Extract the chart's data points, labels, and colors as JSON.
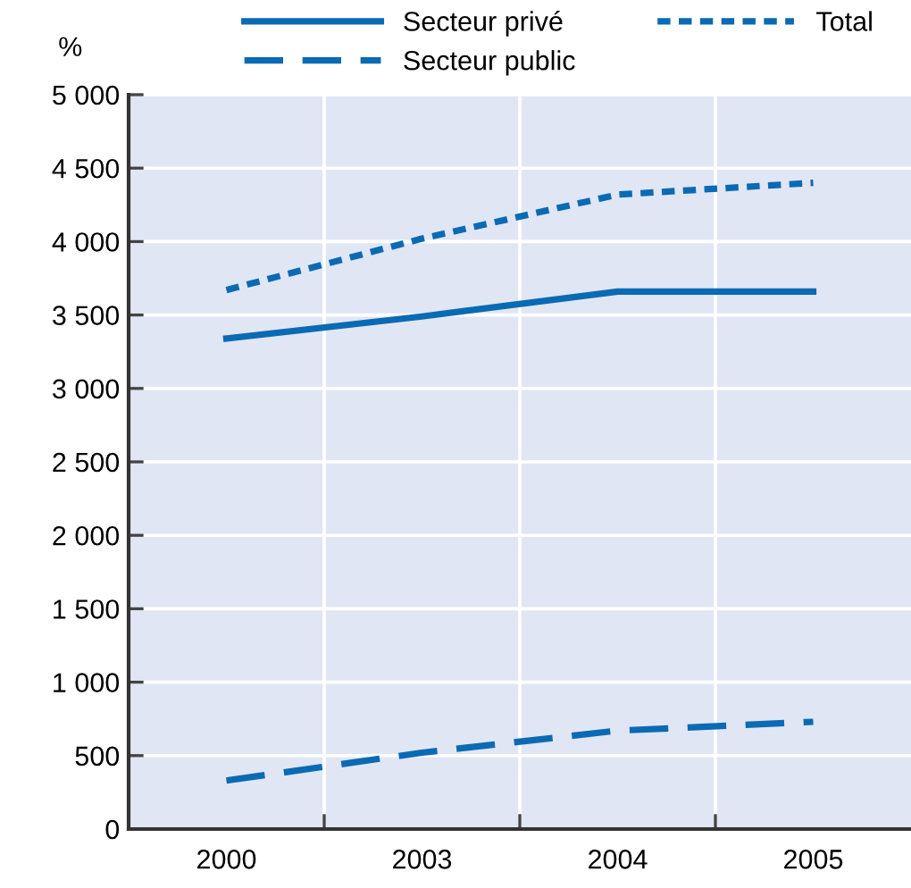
{
  "chart_data": {
    "type": "line",
    "ylabel": "%",
    "categories": [
      "2000",
      "2003",
      "2004",
      "2005"
    ],
    "series": [
      {
        "name": "Secteur privé",
        "color": "#0a6ab4",
        "line_style": "solid",
        "values": [
          3340,
          3490,
          3660,
          3660
        ]
      },
      {
        "name": "Secteur public",
        "color": "#0a6ab4",
        "line_style": "dashed",
        "values": [
          330,
          520,
          670,
          730
        ]
      },
      {
        "name": "Total",
        "color": "#0a6ab4",
        "line_style": "dotted",
        "values": [
          3670,
          4020,
          4320,
          4400
        ]
      }
    ],
    "ylim": [
      0,
      5000
    ],
    "yticks": [
      0,
      500,
      {
        "value": 1000,
        "label": "1 000"
      },
      {
        "value": 1500,
        "label": "1 500"
      },
      {
        "value": 2000,
        "label": "2 000"
      },
      {
        "value": 2500,
        "label": "2 500"
      },
      {
        "value": 3000,
        "label": "3 000"
      },
      {
        "value": 3500,
        "label": "3 500"
      },
      {
        "value": 4000,
        "label": "4 000"
      },
      {
        "value": 4500,
        "label": "4 500"
      },
      {
        "value": 5000,
        "label": "5 000"
      }
    ],
    "grid": true,
    "legend": "top",
    "marker": "none"
  }
}
